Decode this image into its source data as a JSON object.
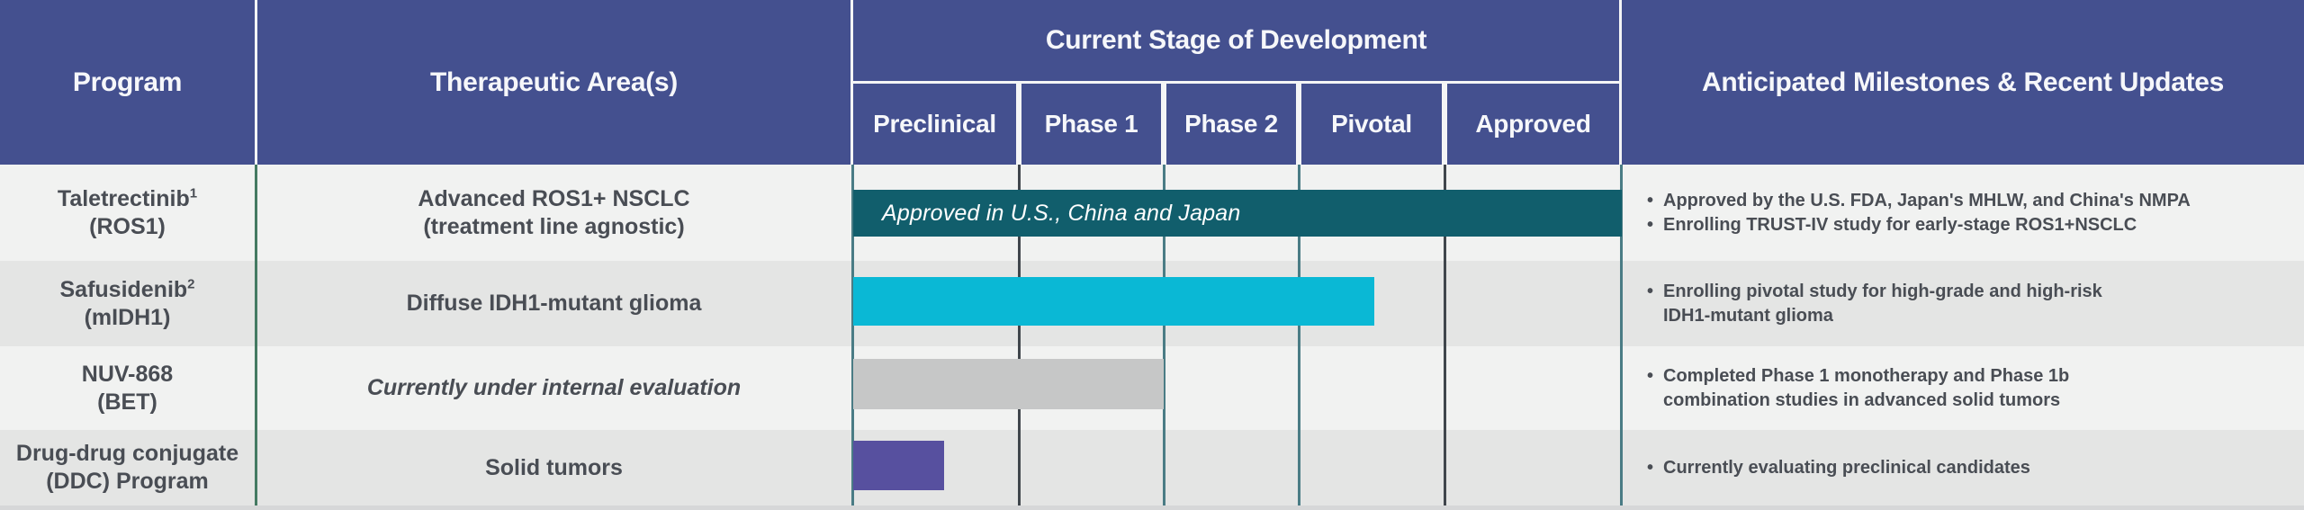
{
  "header": {
    "program": "Program",
    "therapeutic_area": "Therapeutic Area(s)",
    "stage_group": "Current Stage of Development",
    "stages": [
      "Preclinical",
      "Phase 1",
      "Phase 2",
      "Pivotal",
      "Approved"
    ],
    "milestones": "Anticipated Milestones & Recent Updates"
  },
  "icons": {
    "bullet": "•"
  },
  "rows": [
    {
      "program_name": "Taletrectinib",
      "program_footnote": "1",
      "program_target": "(ROS1)",
      "therapeutic_line1": "Advanced ROS1+ NSCLC",
      "therapeutic_line2": "(treatment line agnostic)",
      "milestones": [
        [
          "Approved by the U.S. FDA, Japan's MHLW, and China's NMPA"
        ],
        [
          "Enrolling TRUST-IV study for early-stage ROS1+NSCLC"
        ]
      ]
    },
    {
      "program_name": "Safusidenib",
      "program_footnote": "2",
      "program_target": "(mIDH1)",
      "therapeutic_line1": "Diffuse IDH1-mutant glioma",
      "therapeutic_line2": "",
      "milestones": [
        [
          "Enrolling pivotal study for high-grade and high-risk",
          "IDH1-mutant glioma"
        ]
      ]
    },
    {
      "program_name": "NUV-868",
      "program_footnote": "",
      "program_target": "(BET)",
      "therapeutic_line1": "Currently under internal evaluation",
      "therapeutic_line2": "",
      "milestones": [
        [
          "Completed Phase 1 monotherapy and Phase 1b",
          "combination studies in advanced solid tumors"
        ]
      ]
    },
    {
      "program_name": "Drug-drug conjugate",
      "program_footnote": "",
      "program_target": "(DDC) Program",
      "therapeutic_line1": "Solid tumors",
      "therapeutic_line2": "",
      "milestones": [
        [
          "Currently evaluating preclinical candidates"
        ]
      ]
    }
  ],
  "colors": {
    "header_blue": "#44508f",
    "bar_approved_teal": "#115e6c",
    "bar_cyan": "#0ab8d5",
    "bar_gray": "#c6c7c7",
    "bar_purple": "#57509f",
    "row_light": "#f1f2f1",
    "row_dark": "#e4e5e4",
    "text_dark": "#494d54"
  },
  "chart_data": {
    "type": "bar",
    "title": "Current Stage of Development",
    "orientation": "horizontal",
    "stage_axis": {
      "categories": [
        "Preclinical",
        "Phase 1",
        "Phase 2",
        "Pivotal",
        "Approved"
      ],
      "min": 0,
      "max": 5
    },
    "grid": true,
    "series": [
      {
        "name": "Taletrectinib (ROS1)",
        "start": 0,
        "end": 5.0,
        "color": "#115e6c",
        "label": "Approved in U.S., China and Japan"
      },
      {
        "name": "Safusidenib (mIDH1)",
        "start": 0,
        "end": 3.52,
        "color": "#0ab8d5",
        "label": ""
      },
      {
        "name": "NUV-868 (BET)",
        "start": 0,
        "end": 2.0,
        "color": "#c6c7c7",
        "label": ""
      },
      {
        "name": "Drug-drug conjugate (DDC) Program",
        "start": 0,
        "end": 0.55,
        "color": "#57509f",
        "label": ""
      }
    ]
  }
}
